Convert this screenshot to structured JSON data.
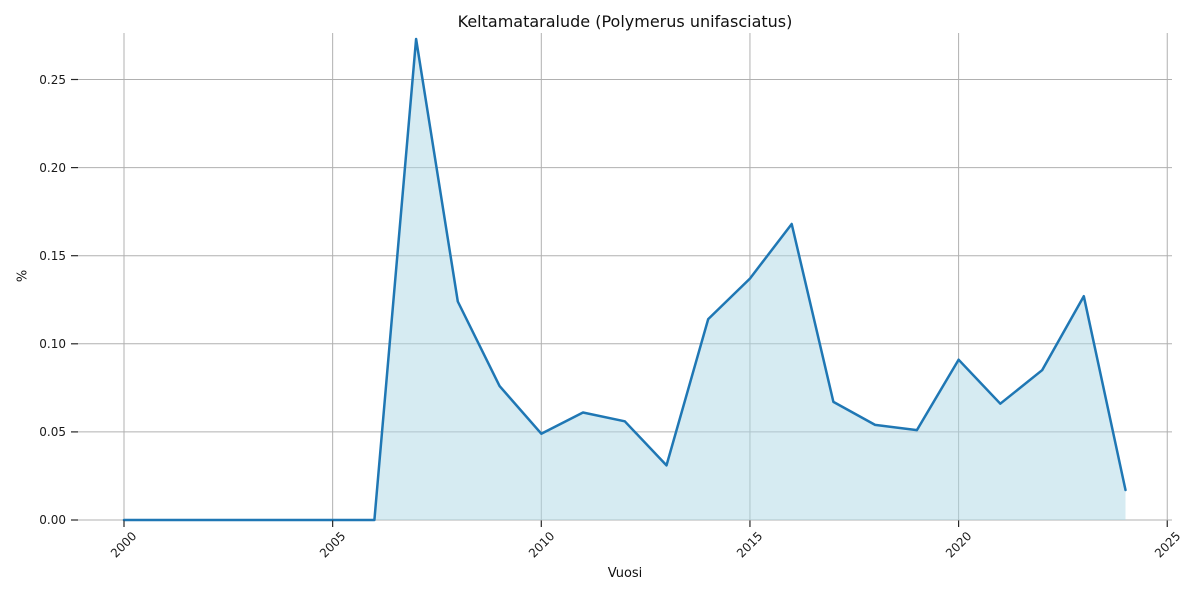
{
  "chart_data": {
    "type": "area",
    "title": "Keltamataralude (Polymerus unifasciatus)",
    "xlabel": "Vuosi",
    "ylabel": "%",
    "x": [
      2000,
      2001,
      2002,
      2003,
      2004,
      2005,
      2006,
      2007,
      2008,
      2009,
      2010,
      2011,
      2012,
      2013,
      2014,
      2015,
      2016,
      2017,
      2018,
      2019,
      2020,
      2021,
      2022,
      2023,
      2024
    ],
    "values": [
      0,
      0,
      0,
      0,
      0,
      0,
      0,
      0.273,
      0.124,
      0.076,
      0.049,
      0.061,
      0.056,
      0.031,
      0.114,
      0.137,
      0.168,
      0.067,
      0.054,
      0.051,
      0.091,
      0.066,
      0.085,
      0.127,
      0.017
    ],
    "x_ticks": [
      2000,
      2005,
      2010,
      2015,
      2020,
      2025
    ],
    "x_tick_labels": [
      "2000",
      "2005",
      "2010",
      "2015",
      "2020",
      "2025"
    ],
    "y_ticks": [
      0,
      0.05,
      0.1,
      0.15,
      0.2,
      0.25
    ],
    "y_tick_labels": [
      "0.00",
      "0.05",
      "0.10",
      "0.15",
      "0.20",
      "0.25"
    ],
    "xlim": [
      1999.8,
      2025.1
    ],
    "ylim": [
      0,
      0.2765
    ],
    "grid": true,
    "legend": "none",
    "colors": {
      "line": "#1f77b4",
      "fill": "#add8e6",
      "fill_opacity": 0.5,
      "grid": "#b0b0b0",
      "tick": "#262626",
      "text": "#1a1a1a"
    }
  }
}
